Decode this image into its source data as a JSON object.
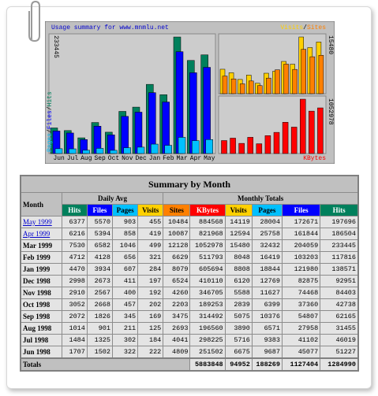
{
  "chart": {
    "title": "Usage summary for www.mnmlu.net",
    "months": [
      "Jun",
      "Jul",
      "Aug",
      "Sep",
      "Oct",
      "Nov",
      "Dec",
      "Jan",
      "Feb",
      "Mar",
      "Apr",
      "May"
    ],
    "left_legend": [
      "Pages",
      "Files",
      "Hits"
    ],
    "right_legend": [
      "Visits",
      "Sites"
    ],
    "separator": "/",
    "kbytes_label": "KBytes",
    "max_hits": 233445,
    "max_visits": 15480,
    "max_kbytes": 1052978
  },
  "colors": {
    "hits": "#00805c",
    "files": "#0000ff",
    "pages": "#00c0ff",
    "visits": "#ffd000",
    "sites": "#ff8000",
    "kbytes": "#ff0000"
  },
  "table": {
    "title": "Summary by Month",
    "month_header": "Month",
    "daily_avg": "Daily Avg",
    "monthly_totals": "Monthly Totals",
    "columns": [
      "Hits",
      "Files",
      "Pages",
      "Visits",
      "Sites",
      "KBytes",
      "Visits",
      "Pages",
      "Files",
      "Hits"
    ],
    "rows": [
      [
        "May 1999",
        6377,
        5570,
        903,
        455,
        10484,
        884568,
        14119,
        28004,
        172671,
        197696
      ],
      [
        "Apr 1999",
        6216,
        5394,
        858,
        419,
        10087,
        821968,
        12594,
        25758,
        161844,
        186504
      ],
      [
        "Mar 1999",
        7530,
        6582,
        1046,
        499,
        12128,
        1052978,
        15480,
        32432,
        204059,
        233445
      ],
      [
        "Feb 1999",
        4712,
        4128,
        656,
        321,
        6629,
        511793,
        8048,
        16419,
        103203,
        117816
      ],
      [
        "Jan 1999",
        4470,
        3934,
        607,
        284,
        8079,
        605694,
        8808,
        18844,
        121980,
        138571
      ],
      [
        "Dec 1998",
        2998,
        2673,
        411,
        197,
        6524,
        410110,
        6120,
        12769,
        82875,
        92951
      ],
      [
        "Nov 1998",
        2910,
        2567,
        400,
        192,
        4260,
        346705,
        5588,
        11627,
        74468,
        84403
      ],
      [
        "Oct 1998",
        3052,
        2668,
        457,
        202,
        2203,
        189253,
        2839,
        6399,
        37360,
        42738
      ],
      [
        "Sep 1998",
        2072,
        1826,
        345,
        169,
        3475,
        314492,
        5075,
        10376,
        54807,
        62165
      ],
      [
        "Aug 1998",
        1014,
        901,
        211,
        125,
        2693,
        196560,
        3890,
        6571,
        27958,
        31455
      ],
      [
        "Jul 1998",
        1484,
        1325,
        302,
        184,
        4041,
        298225,
        5716,
        9383,
        41102,
        46019
      ],
      [
        "Jun 1998",
        1707,
        1502,
        322,
        222,
        4809,
        251502,
        6675,
        9687,
        45077,
        51227
      ]
    ],
    "linked_rows": [
      0,
      1
    ],
    "totals_label": "Totals",
    "totals": [
      5883848,
      94952,
      188269,
      1127404,
      1284990
    ]
  }
}
